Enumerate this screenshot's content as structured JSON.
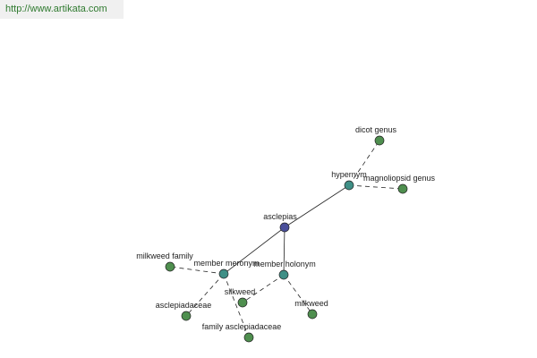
{
  "header": {
    "url": "http://www.artikata.com"
  },
  "nodes": [
    {
      "label": "asclepias"
    },
    {
      "label": "hypernym"
    },
    {
      "label": "dicot genus"
    },
    {
      "label": "magnoliopsid genus"
    },
    {
      "label": "member meronym"
    },
    {
      "label": "member holonym"
    },
    {
      "label": "milkweed family"
    },
    {
      "label": "asclepiadaceae"
    },
    {
      "label": "family asclepiadaceae"
    },
    {
      "label": "silkweed"
    },
    {
      "label": "milkweed"
    }
  ]
}
